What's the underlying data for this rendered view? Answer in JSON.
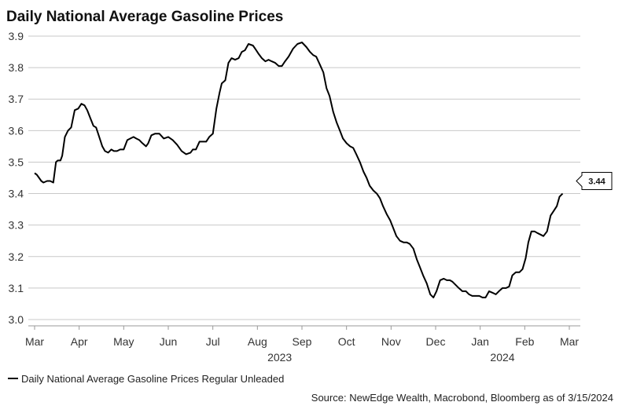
{
  "chart_data": {
    "type": "line",
    "title": "Daily National Average Gasoline Prices",
    "xlabel": "",
    "ylabel": "",
    "ylim": [
      3.0,
      3.9
    ],
    "yticks": [
      "3.0",
      "3.1",
      "3.2",
      "3.3",
      "3.4",
      "3.5",
      "3.6",
      "3.7",
      "3.8",
      "3.9"
    ],
    "xticks": [
      "Mar",
      "Apr",
      "May",
      "Jun",
      "Jul",
      "Aug",
      "Sep",
      "Oct",
      "Nov",
      "Dec",
      "Jan",
      "Feb",
      "Mar"
    ],
    "year_labels": [
      {
        "label": "2023",
        "month_index": 5.5
      },
      {
        "label": "2024",
        "month_index": 10.5
      }
    ],
    "x_range_months": [
      0,
      12
    ],
    "series": [
      {
        "name": "Daily National Average Gasoline Prices Regular Unleaded",
        "color": "#000000",
        "x_month_index": [
          0.0,
          0.05,
          0.1,
          0.15,
          0.2,
          0.28,
          0.35,
          0.42,
          0.48,
          0.52,
          0.58,
          0.62,
          0.68,
          0.75,
          0.82,
          0.9,
          0.98,
          1.05,
          1.12,
          1.18,
          1.25,
          1.32,
          1.38,
          1.45,
          1.52,
          1.58,
          1.65,
          1.72,
          1.78,
          1.85,
          1.92,
          2.0,
          2.08,
          2.15,
          2.22,
          2.28,
          2.35,
          2.42,
          2.5,
          2.55,
          2.62,
          2.7,
          2.8,
          2.9,
          3.0,
          3.1,
          3.2,
          3.3,
          3.4,
          3.5,
          3.55,
          3.62,
          3.7,
          3.78,
          3.85,
          3.92,
          4.0,
          4.08,
          4.15,
          4.2,
          4.28,
          4.35,
          4.42,
          4.5,
          4.58,
          4.65,
          4.72,
          4.8,
          4.9,
          4.95,
          5.02,
          5.1,
          5.18,
          5.25,
          5.32,
          5.4,
          5.48,
          5.55,
          5.62,
          5.7,
          5.8,
          5.9,
          6.0,
          6.1,
          6.18,
          6.25,
          6.32,
          6.4,
          6.48,
          6.55,
          6.62,
          6.7,
          6.78,
          6.85,
          6.92,
          7.0,
          7.08,
          7.15,
          7.22,
          7.3,
          7.38,
          7.45,
          7.52,
          7.6,
          7.68,
          7.75,
          7.82,
          7.9,
          7.98,
          8.05,
          8.12,
          8.2,
          8.28,
          8.35,
          8.42,
          8.5,
          8.58,
          8.65,
          8.72,
          8.8,
          8.88,
          8.95,
          9.02,
          9.1,
          9.18,
          9.25,
          9.32,
          9.38,
          9.45,
          9.52,
          9.6,
          9.68,
          9.75,
          9.82,
          9.9,
          9.98,
          10.05,
          10.12,
          10.2,
          10.28,
          10.35,
          10.42,
          10.5,
          10.58,
          10.65,
          10.72,
          10.8,
          10.88,
          10.95,
          11.02,
          11.08,
          11.15,
          11.22,
          11.28,
          11.35,
          11.42,
          11.5,
          11.58,
          11.65,
          11.72,
          11.78,
          11.85
        ],
        "values": [
          3.465,
          3.46,
          3.45,
          3.44,
          3.435,
          3.44,
          3.44,
          3.435,
          3.5,
          3.505,
          3.505,
          3.52,
          3.58,
          3.6,
          3.61,
          3.665,
          3.67,
          3.685,
          3.68,
          3.665,
          3.64,
          3.615,
          3.61,
          3.58,
          3.55,
          3.535,
          3.53,
          3.54,
          3.535,
          3.535,
          3.54,
          3.54,
          3.57,
          3.575,
          3.58,
          3.575,
          3.57,
          3.56,
          3.55,
          3.56,
          3.585,
          3.59,
          3.59,
          3.575,
          3.58,
          3.57,
          3.555,
          3.535,
          3.525,
          3.53,
          3.54,
          3.54,
          3.565,
          3.565,
          3.565,
          3.58,
          3.59,
          3.67,
          3.72,
          3.75,
          3.76,
          3.815,
          3.83,
          3.825,
          3.83,
          3.85,
          3.855,
          3.875,
          3.87,
          3.86,
          3.845,
          3.83,
          3.82,
          3.825,
          3.82,
          3.815,
          3.805,
          3.805,
          3.82,
          3.835,
          3.86,
          3.875,
          3.88,
          3.865,
          3.85,
          3.84,
          3.835,
          3.81,
          3.785,
          3.735,
          3.71,
          3.66,
          3.625,
          3.6,
          3.575,
          3.56,
          3.55,
          3.545,
          3.525,
          3.5,
          3.47,
          3.45,
          3.425,
          3.41,
          3.4,
          3.385,
          3.36,
          3.335,
          3.315,
          3.29,
          3.265,
          3.25,
          3.245,
          3.245,
          3.24,
          3.225,
          3.19,
          3.165,
          3.14,
          3.115,
          3.08,
          3.07,
          3.09,
          3.125,
          3.13,
          3.125,
          3.125,
          3.12,
          3.11,
          3.1,
          3.09,
          3.09,
          3.08,
          3.075,
          3.075,
          3.075,
          3.07,
          3.07,
          3.09,
          3.085,
          3.08,
          3.09,
          3.1,
          3.1,
          3.105,
          3.14,
          3.15,
          3.15,
          3.16,
          3.195,
          3.245,
          3.28,
          3.28,
          3.275,
          3.27,
          3.265,
          3.28,
          3.33,
          3.345,
          3.36,
          3.39,
          3.4,
          3.395,
          3.4,
          3.41,
          3.44
        ]
      }
    ],
    "last_value_label": "3.44",
    "legend_position": "bottom-left",
    "grid": true
  },
  "legend": {
    "label": "Daily National Average Gasoline Prices Regular Unleaded"
  },
  "source": {
    "text": "Source: NewEdge Wealth, Macrobond, Bloomberg  as of 3/15/2024"
  }
}
